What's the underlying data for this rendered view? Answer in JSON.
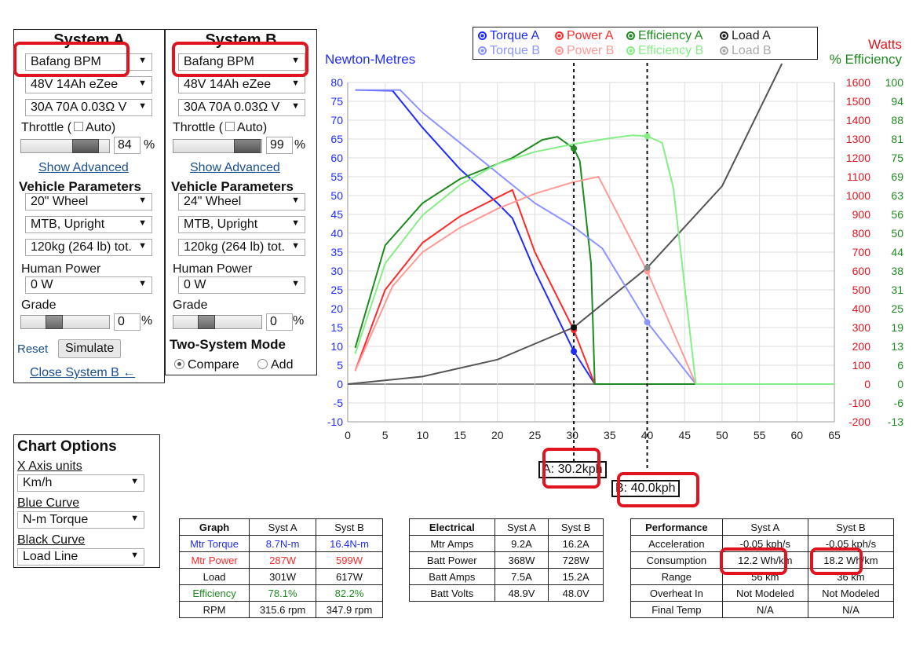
{
  "systemA": {
    "title": "System A",
    "motor": "Bafang BPM",
    "battery": "48V 14Ah eZee",
    "controller": "30A 70A 0.03Ω V",
    "throttle_label": "Throttle (",
    "auto_label": "Auto)",
    "throttle_value": "84",
    "throttle_fraction": 0.84,
    "pct": "%",
    "show_advanced": "Show Advanced",
    "vehicle_params": "Vehicle Parameters",
    "wheel": "20\"  Wheel",
    "position": "MTB, Upright",
    "weight": "120kg (264 lb) tot.",
    "human_power_label": "Human Power",
    "human_power": "0 W",
    "grade_label": "Grade",
    "grade_value": "0",
    "reset": "Reset",
    "simulate": "Simulate",
    "close_b": "Close System B ←"
  },
  "systemB": {
    "title": "System B",
    "motor": "Bafang BPM",
    "battery": "48V 14Ah eZee",
    "controller": "30A 70A 0.03Ω V",
    "throttle_label": "Throttle (",
    "auto_label": "Auto)",
    "throttle_value": "99",
    "throttle_fraction": 0.99,
    "pct": "%",
    "show_advanced": "Show Advanced",
    "vehicle_params": "Vehicle Parameters",
    "wheel": "24\"  Wheel",
    "position": "MTB, Upright",
    "weight": "120kg (264 lb) tot.",
    "human_power_label": "Human Power",
    "human_power": "0 W",
    "grade_label": "Grade",
    "grade_value": "0",
    "two_system": "Two-System Mode",
    "compare": "Compare",
    "add": "Add"
  },
  "chart_options": {
    "title": "Chart Options",
    "x_units_label": "X Axis units",
    "x_units": "Km/h",
    "blue_label": "Blue Curve",
    "blue": "N-m Torque",
    "black_label": "Black Curve",
    "black": "Load Line"
  },
  "legend": {
    "row1": [
      "Torque A",
      "Power A",
      "Efficiency A",
      "Load A"
    ],
    "row2": [
      "Torque B",
      "Power B",
      "Efficiency B",
      "Load B"
    ]
  },
  "colors": {
    "torqueA": "#1f2bff",
    "powerA": "#ff2a2a",
    "effA": "#1f8a1f",
    "loadA": "#555555",
    "torqueB": "#8c95ff",
    "powerB": "#ff9a96",
    "effB": "#86ee86",
    "loadB": "#aaaaaa",
    "highlight": "#e0141e",
    "link": "#1a4f8f"
  },
  "axis": {
    "left_label": "Newton-Metres",
    "right_label1": "Watts",
    "right_label2": "% Efficiency",
    "left_ticks": [
      "80",
      "75",
      "70",
      "65",
      "60",
      "55",
      "50",
      "45",
      "40",
      "35",
      "30",
      "25",
      "20",
      "15",
      "10",
      "5",
      "0",
      "-5",
      "-10"
    ],
    "watt_ticks": [
      "1600",
      "1500",
      "1400",
      "1300",
      "1200",
      "1100",
      "1000",
      "900",
      "800",
      "700",
      "600",
      "500",
      "400",
      "300",
      "200",
      "100",
      "0",
      "-100",
      "-200"
    ],
    "eff_ticks": [
      "100",
      "94",
      "88",
      "81",
      "75",
      "69",
      "63",
      "56",
      "50",
      "44",
      "38",
      "31",
      "25",
      "19",
      "13",
      "6",
      "0",
      "-6",
      "-13"
    ],
    "x_ticks": [
      "0",
      "5",
      "10",
      "15",
      "20",
      "25",
      "30",
      "35",
      "40",
      "45",
      "50",
      "55",
      "60",
      "65"
    ]
  },
  "markers": {
    "a_label": "A: 30.2kph",
    "b_label": "B: 40.0kph",
    "a_x": 30.2,
    "b_x": 40.0
  },
  "chart_data": {
    "type": "line",
    "xlim": [
      0,
      65
    ],
    "ylim_left": [
      -10,
      80
    ],
    "ylim_watts": [
      -200,
      1600
    ],
    "series": [
      {
        "name": "Torque A",
        "axis": "nm",
        "x": [
          1,
          6,
          10,
          15,
          20,
          22,
          25,
          30.2,
          33,
          65
        ],
        "y": [
          78,
          77.8,
          68,
          57,
          48,
          44,
          30,
          8.7,
          0,
          0
        ]
      },
      {
        "name": "Power A",
        "axis": "w",
        "x": [
          1,
          5,
          10,
          15,
          20,
          22,
          25,
          30.2,
          33,
          65
        ],
        "y": [
          70,
          500,
          750,
          890,
          990,
          1030,
          700,
          287,
          0,
          0
        ]
      },
      {
        "name": "Efficiency A",
        "axis": "pct",
        "x": [
          1,
          5,
          10,
          15,
          20,
          22,
          26,
          28,
          30.2,
          31,
          32.5,
          33,
          65
        ],
        "y": [
          12,
          46,
          60,
          68,
          73,
          75,
          81,
          82,
          78.1,
          74,
          40,
          0,
          0
        ]
      },
      {
        "name": "Load A",
        "axis": "w",
        "x": [
          0,
          10,
          20,
          30.2,
          40,
          50,
          58
        ],
        "y": [
          0,
          40,
          130,
          301,
          617,
          1050,
          1700
        ]
      },
      {
        "name": "Torque B",
        "axis": "nm",
        "x": [
          1,
          7,
          10,
          15,
          20,
          25,
          30,
          34,
          40,
          46.5,
          65
        ],
        "y": [
          78,
          78,
          72,
          64,
          56,
          48,
          42,
          36,
          16.4,
          0,
          0
        ]
      },
      {
        "name": "Power B",
        "axis": "w",
        "x": [
          1,
          6,
          10,
          15,
          20,
          25,
          30,
          33.5,
          40,
          46.5,
          65
        ],
        "y": [
          70,
          520,
          700,
          830,
          930,
          1010,
          1070,
          1100,
          599,
          0,
          0
        ]
      },
      {
        "name": "Efficiency B",
        "axis": "pct",
        "x": [
          1,
          5,
          10,
          15,
          20,
          25,
          30,
          35,
          38,
          40,
          42,
          43.5,
          46.5,
          65
        ],
        "y": [
          10,
          40,
          56,
          66,
          73,
          77,
          79.5,
          81.5,
          82.5,
          82.2,
          80,
          65,
          0,
          0
        ]
      }
    ]
  },
  "tables": {
    "graph": {
      "headers": [
        "Graph",
        "Syst A",
        "Syst B"
      ],
      "rows": [
        [
          "Mtr Torque",
          "8.7N-m",
          "16.4N-m"
        ],
        [
          "Mtr Power",
          "287W",
          "599W"
        ],
        [
          "Load",
          "301W",
          "617W"
        ],
        [
          "Efficiency",
          "78.1%",
          "82.2%"
        ],
        [
          "RPM",
          "315.6 rpm",
          "347.9 rpm"
        ]
      ]
    },
    "electrical": {
      "headers": [
        "Electrical",
        "Syst A",
        "Syst B"
      ],
      "rows": [
        [
          "Mtr Amps",
          "9.2A",
          "16.2A"
        ],
        [
          "Batt Power",
          "368W",
          "728W"
        ],
        [
          "Batt Amps",
          "7.5A",
          "15.2A"
        ],
        [
          "Batt Volts",
          "48.9V",
          "48.0V"
        ]
      ]
    },
    "performance": {
      "headers": [
        "Performance",
        "Syst A",
        "Syst B"
      ],
      "rows": [
        [
          "Acceleration",
          "-0.05 kph/s",
          "-0.05 kph/s"
        ],
        [
          "Consumption",
          "12.2 Wh/km",
          "18.2 Wh/km"
        ],
        [
          "Range",
          "56 km",
          "36 km"
        ],
        [
          "Overheat In",
          "Not Modeled",
          "Not Modeled"
        ],
        [
          "Final Temp",
          "N/A",
          "N/A"
        ]
      ]
    }
  }
}
